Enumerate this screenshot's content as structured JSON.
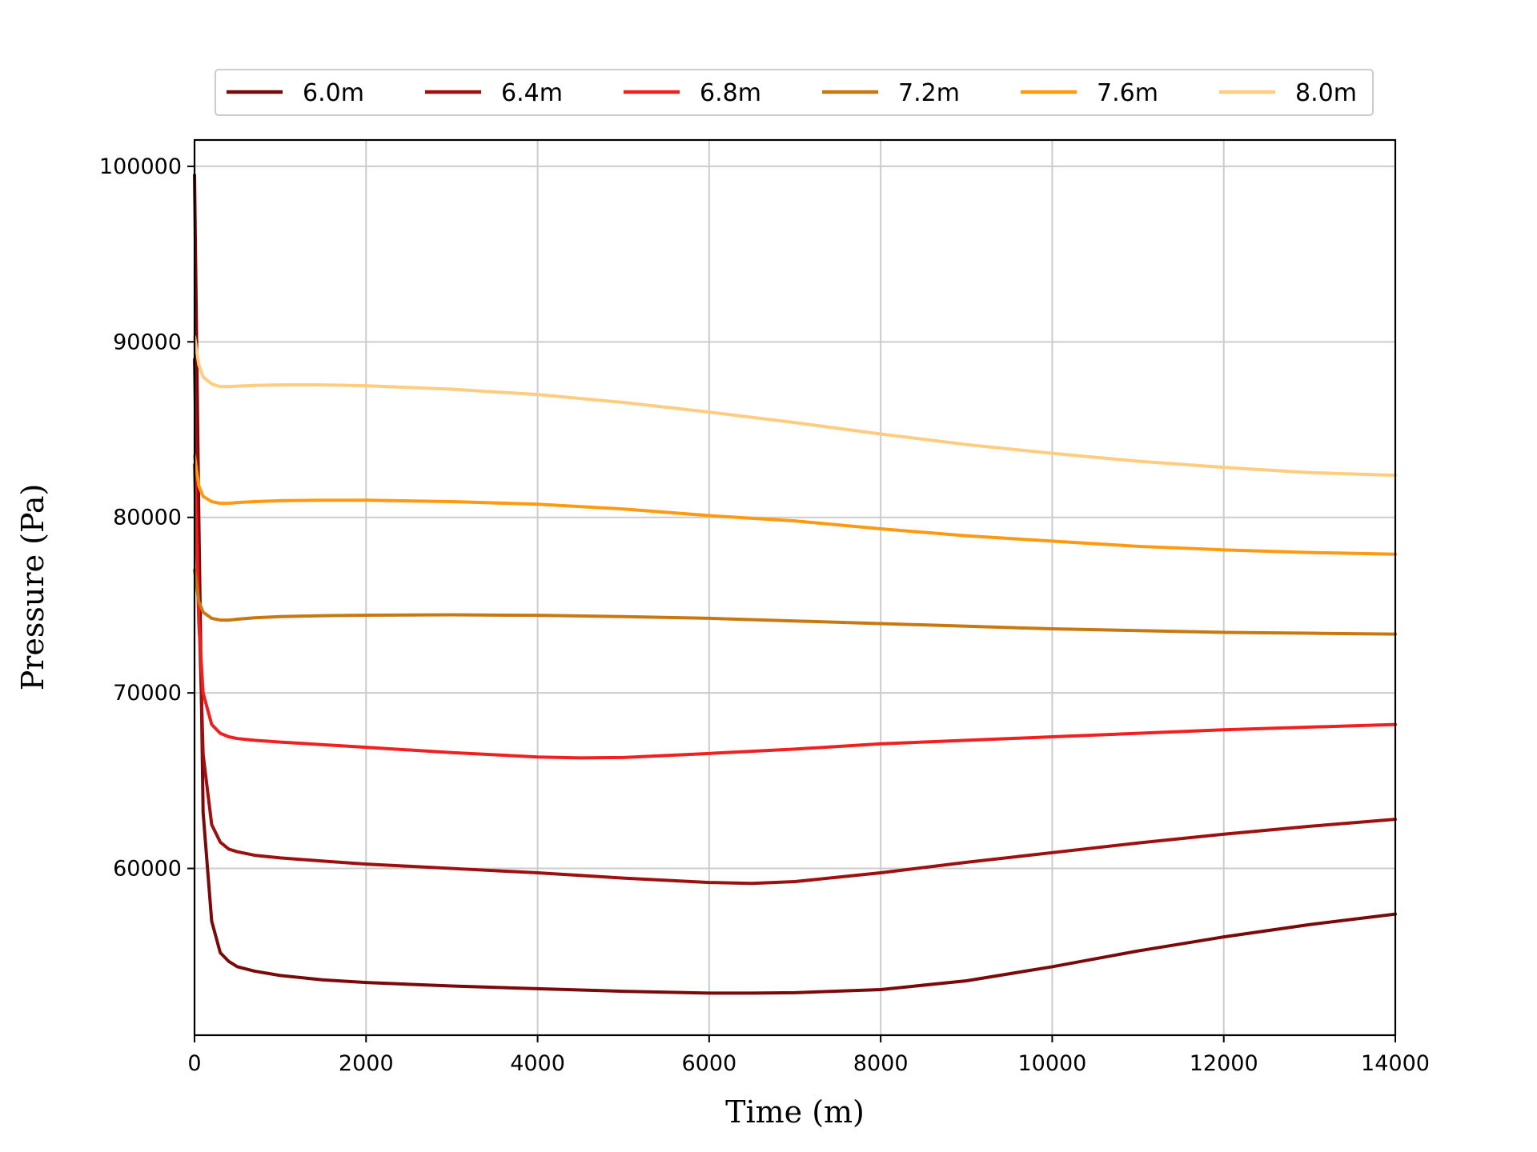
{
  "chart_data": {
    "type": "line",
    "title": "",
    "xlabel": "Time (m)",
    "ylabel": "Pressure (Pa)",
    "xlim": [
      0,
      14000
    ],
    "ylim": [
      50500,
      101500
    ],
    "xticks": [
      0,
      2000,
      4000,
      6000,
      8000,
      10000,
      12000,
      14000
    ],
    "xtick_labels": [
      "0",
      "2000",
      "4000",
      "6000",
      "8000",
      "10000",
      "12000",
      "14000"
    ],
    "yticks": [
      60000,
      70000,
      80000,
      90000,
      100000
    ],
    "ytick_labels": [
      "60000",
      "70000",
      "80000",
      "90000",
      "100000"
    ],
    "grid": true,
    "legend_position": "top-center",
    "series": [
      {
        "name": "6.0m",
        "color": "#7a0a0a",
        "x": [
          0,
          50,
          100,
          200,
          300,
          400,
          500,
          700,
          1000,
          1500,
          2000,
          3000,
          4000,
          5000,
          6000,
          6500,
          7000,
          8000,
          9000,
          10000,
          11000,
          12000,
          13000,
          14000
        ],
        "y": [
          99500,
          80000,
          63200,
          57000,
          55200,
          54700,
          54400,
          54150,
          53900,
          53650,
          53500,
          53300,
          53150,
          53000,
          52900,
          52900,
          52920,
          53100,
          53600,
          54400,
          55300,
          56100,
          56800,
          57400
        ]
      },
      {
        "name": "6.4m",
        "color": "#9c1010",
        "x": [
          0,
          50,
          100,
          200,
          300,
          400,
          500,
          700,
          1000,
          1500,
          2000,
          3000,
          4000,
          5000,
          6000,
          6500,
          7000,
          8000,
          9000,
          10000,
          11000,
          12000,
          13000,
          14000
        ],
        "y": [
          89000,
          75000,
          66500,
          62500,
          61500,
          61100,
          60950,
          60750,
          60600,
          60420,
          60250,
          60000,
          59750,
          59450,
          59200,
          59150,
          59250,
          59750,
          60350,
          60900,
          61450,
          61950,
          62400,
          62800
        ]
      },
      {
        "name": "6.8m",
        "color": "#f02020",
        "x": [
          0,
          50,
          100,
          200,
          300,
          400,
          500,
          700,
          1000,
          1500,
          2000,
          3000,
          4000,
          4500,
          5000,
          6000,
          7000,
          8000,
          9000,
          10000,
          11000,
          12000,
          13000,
          14000
        ],
        "y": [
          83000,
          74000,
          70000,
          68200,
          67700,
          67500,
          67400,
          67300,
          67200,
          67050,
          66900,
          66600,
          66350,
          66300,
          66320,
          66550,
          66800,
          67100,
          67300,
          67500,
          67700,
          67900,
          68050,
          68200
        ]
      },
      {
        "name": "7.2m",
        "color": "#c87810",
        "x": [
          0,
          50,
          100,
          200,
          300,
          400,
          500,
          700,
          1000,
          1500,
          2000,
          3000,
          4000,
          5000,
          6000,
          7000,
          8000,
          9000,
          10000,
          11000,
          12000,
          13000,
          14000
        ],
        "y": [
          77000,
          75200,
          74600,
          74250,
          74150,
          74150,
          74200,
          74280,
          74350,
          74400,
          74430,
          74450,
          74420,
          74350,
          74250,
          74100,
          73950,
          73800,
          73650,
          73550,
          73450,
          73400,
          73350
        ]
      },
      {
        "name": "7.6m",
        "color": "#ff9a10",
        "x": [
          0,
          50,
          100,
          200,
          300,
          400,
          500,
          700,
          1000,
          1500,
          2000,
          3000,
          4000,
          5000,
          6000,
          7000,
          8000,
          9000,
          10000,
          11000,
          12000,
          13000,
          14000
        ],
        "y": [
          83500,
          81800,
          81200,
          80900,
          80800,
          80800,
          80850,
          80900,
          80950,
          80980,
          80980,
          80900,
          80750,
          80480,
          80100,
          79800,
          79350,
          78950,
          78650,
          78350,
          78150,
          78000,
          77900
        ]
      },
      {
        "name": "8.0m",
        "color": "#ffcc80",
        "x": [
          0,
          50,
          100,
          200,
          300,
          400,
          500,
          700,
          1000,
          1500,
          2000,
          3000,
          4000,
          5000,
          6000,
          7000,
          8000,
          9000,
          10000,
          11000,
          12000,
          13000,
          14000
        ],
        "y": [
          90300,
          88700,
          88000,
          87600,
          87450,
          87450,
          87480,
          87520,
          87550,
          87550,
          87500,
          87300,
          87000,
          86550,
          86000,
          85400,
          84750,
          84150,
          83650,
          83200,
          82850,
          82550,
          82400
        ]
      }
    ]
  }
}
